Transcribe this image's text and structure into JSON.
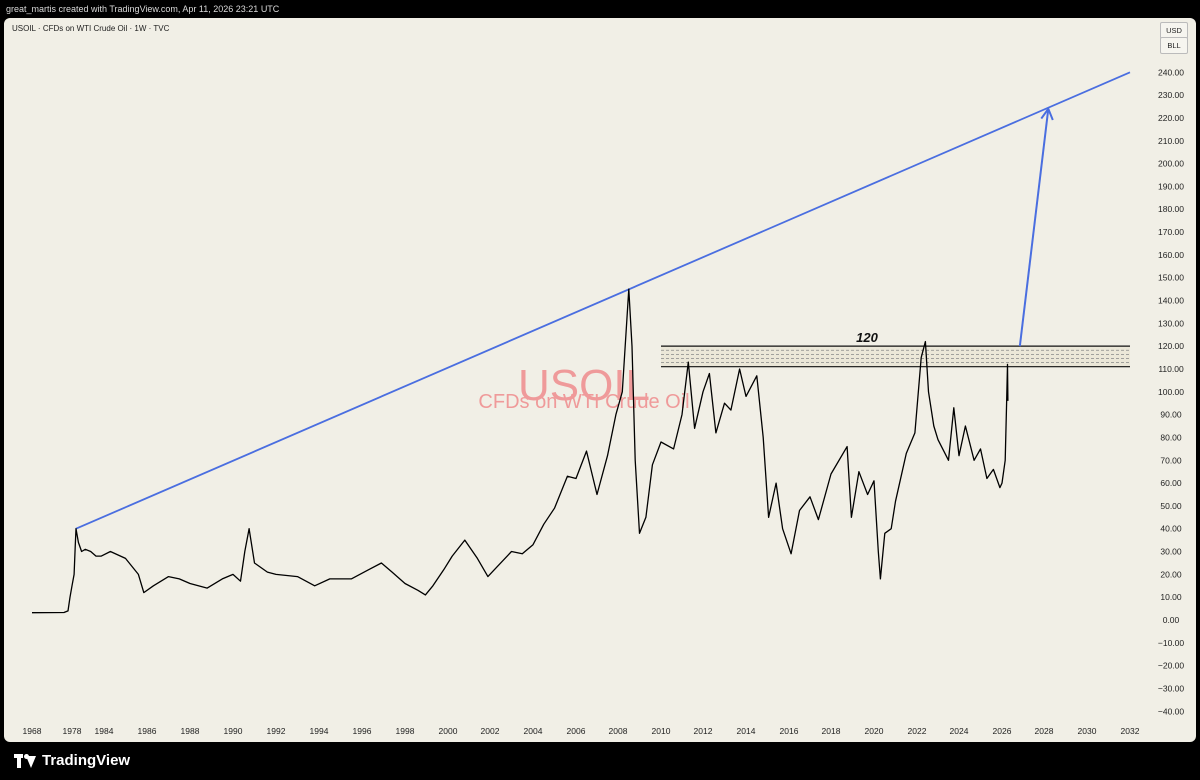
{
  "header": {
    "attribution": "great_martis created with TradingView.com, Apr 11, 2026 23:21 UTC"
  },
  "legend": {
    "text": "USOIL · CFDs on WTI Crude Oil · 1W · TVC"
  },
  "currency": {
    "code": "USD",
    "unit": "BLL"
  },
  "watermark": {
    "symbol": "USOIL",
    "description": "CFDs on WTI Crude Oil"
  },
  "annotation": {
    "level_label": "120"
  },
  "footer": {
    "brand": "TradingView"
  },
  "colors": {
    "background": "#f1efe6",
    "price": "#000000",
    "trendline": "#4a6ee0",
    "watermark": "#ef9a9a",
    "zone_fill": "#ebe7d8"
  },
  "chart_data": {
    "type": "line",
    "x_axis": {
      "type": "time",
      "tick_labels": [
        "1968",
        "1978",
        "1984",
        "1986",
        "1988",
        "1990",
        "1992",
        "1994",
        "1996",
        "1998",
        "2000",
        "2002",
        "2004",
        "2006",
        "2008",
        "2010",
        "2012",
        "2014",
        "2016",
        "2018",
        "2020",
        "2022",
        "2024",
        "2026",
        "2028",
        "2030",
        "2032"
      ]
    },
    "y_axis": {
      "range": [
        -40,
        240
      ],
      "step": 10,
      "unit": "USD",
      "side": "right"
    },
    "series": [
      {
        "values": [
          [
            "1968",
            3.2
          ],
          [
            "1976",
            3.3
          ],
          [
            "1977",
            4.0
          ],
          [
            "1977.5",
            10
          ],
          [
            "1978",
            15
          ],
          [
            "1978.4",
            20
          ],
          [
            "1978.6",
            32
          ],
          [
            "1978.75",
            40
          ],
          [
            "1979.2",
            34
          ],
          [
            "1979.8",
            30
          ],
          [
            "1980.5",
            31
          ],
          [
            "1981.5",
            30
          ],
          [
            "1982.5",
            28
          ],
          [
            "1983.5",
            28
          ],
          [
            "1984.3",
            30
          ],
          [
            "1985",
            27
          ],
          [
            "1985.6",
            20
          ],
          [
            "1985.85",
            12
          ],
          [
            "1986.3",
            15
          ],
          [
            "1987",
            19
          ],
          [
            "1987.5",
            18
          ],
          [
            "1988",
            16
          ],
          [
            "1988.8",
            14
          ],
          [
            "1989.5",
            18
          ],
          [
            "1990",
            20
          ],
          [
            "1990.35",
            17
          ],
          [
            "1990.55",
            30
          ],
          [
            "1990.75",
            40
          ],
          [
            "1991",
            25
          ],
          [
            "1991.6",
            21
          ],
          [
            "1992",
            20
          ],
          [
            "1993",
            19
          ],
          [
            "1993.8",
            15
          ],
          [
            "1994.5",
            18
          ],
          [
            "1995.5",
            18
          ],
          [
            "1996.3",
            22
          ],
          [
            "1996.9",
            25
          ],
          [
            "1997.4",
            21
          ],
          [
            "1998",
            16
          ],
          [
            "1998.6",
            13
          ],
          [
            "1998.95",
            11
          ],
          [
            "1999.3",
            15
          ],
          [
            "1999.8",
            22
          ],
          [
            "2000.2",
            28
          ],
          [
            "2000.8",
            35
          ],
          [
            "2001.4",
            27
          ],
          [
            "2001.9",
            19
          ],
          [
            "2002.4",
            24
          ],
          [
            "2003",
            30
          ],
          [
            "2003.5",
            29
          ],
          [
            "2004",
            33
          ],
          [
            "2004.5",
            42
          ],
          [
            "2005",
            49
          ],
          [
            "2005.6",
            63
          ],
          [
            "2006",
            62
          ],
          [
            "2006.5",
            74
          ],
          [
            "2007",
            55
          ],
          [
            "2007.5",
            72
          ],
          [
            "2007.9",
            90
          ],
          [
            "2008.2",
            100
          ],
          [
            "2008.5",
            145
          ],
          [
            "2008.65",
            120
          ],
          [
            "2008.8",
            70
          ],
          [
            "2009",
            38
          ],
          [
            "2009.3",
            45
          ],
          [
            "2009.6",
            68
          ],
          [
            "2010",
            78
          ],
          [
            "2010.6",
            75
          ],
          [
            "2011",
            90
          ],
          [
            "2011.3",
            113
          ],
          [
            "2011.6",
            84
          ],
          [
            "2012",
            100
          ],
          [
            "2012.3",
            108
          ],
          [
            "2012.6",
            82
          ],
          [
            "2013",
            95
          ],
          [
            "2013.3",
            92
          ],
          [
            "2013.7",
            110
          ],
          [
            "2014",
            98
          ],
          [
            "2014.5",
            107
          ],
          [
            "2014.8",
            80
          ],
          [
            "2015.05",
            45
          ],
          [
            "2015.4",
            60
          ],
          [
            "2015.7",
            40
          ],
          [
            "2016.1",
            29
          ],
          [
            "2016.5",
            48
          ],
          [
            "2017",
            54
          ],
          [
            "2017.4",
            44
          ],
          [
            "2018",
            64
          ],
          [
            "2018.75",
            76
          ],
          [
            "2018.95",
            45
          ],
          [
            "2019.3",
            65
          ],
          [
            "2019.7",
            55
          ],
          [
            "2020",
            61
          ],
          [
            "2020.2",
            30
          ],
          [
            "2020.3",
            18
          ],
          [
            "2020.5",
            38
          ],
          [
            "2020.8",
            40
          ],
          [
            "2021",
            52
          ],
          [
            "2021.5",
            73
          ],
          [
            "2021.9",
            82
          ],
          [
            "2022.2",
            115
          ],
          [
            "2022.4",
            122
          ],
          [
            "2022.55",
            100
          ],
          [
            "2022.8",
            85
          ],
          [
            "2023",
            79
          ],
          [
            "2023.5",
            70
          ],
          [
            "2023.75",
            93
          ],
          [
            "2024",
            72
          ],
          [
            "2024.3",
            85
          ],
          [
            "2024.7",
            70
          ],
          [
            "2025",
            75
          ],
          [
            "2025.3",
            62
          ],
          [
            "2025.6",
            66
          ],
          [
            "2025.9",
            58
          ],
          [
            "2026.0",
            60
          ],
          [
            "2026.15",
            70
          ],
          [
            "2026.22",
            95
          ],
          [
            "2026.26",
            112
          ],
          [
            "2026.28",
            96
          ]
        ]
      }
    ],
    "trendline": {
      "from": [
        "1978.75",
        40
      ],
      "to": [
        "2032",
        240
      ]
    },
    "resistance_zone": {
      "upper": 120,
      "lower": 111,
      "from": "2010",
      "to": "2032"
    },
    "projection_arrow": {
      "from": [
        "2026.85",
        120
      ],
      "to": [
        "2028.2",
        224
      ]
    }
  }
}
